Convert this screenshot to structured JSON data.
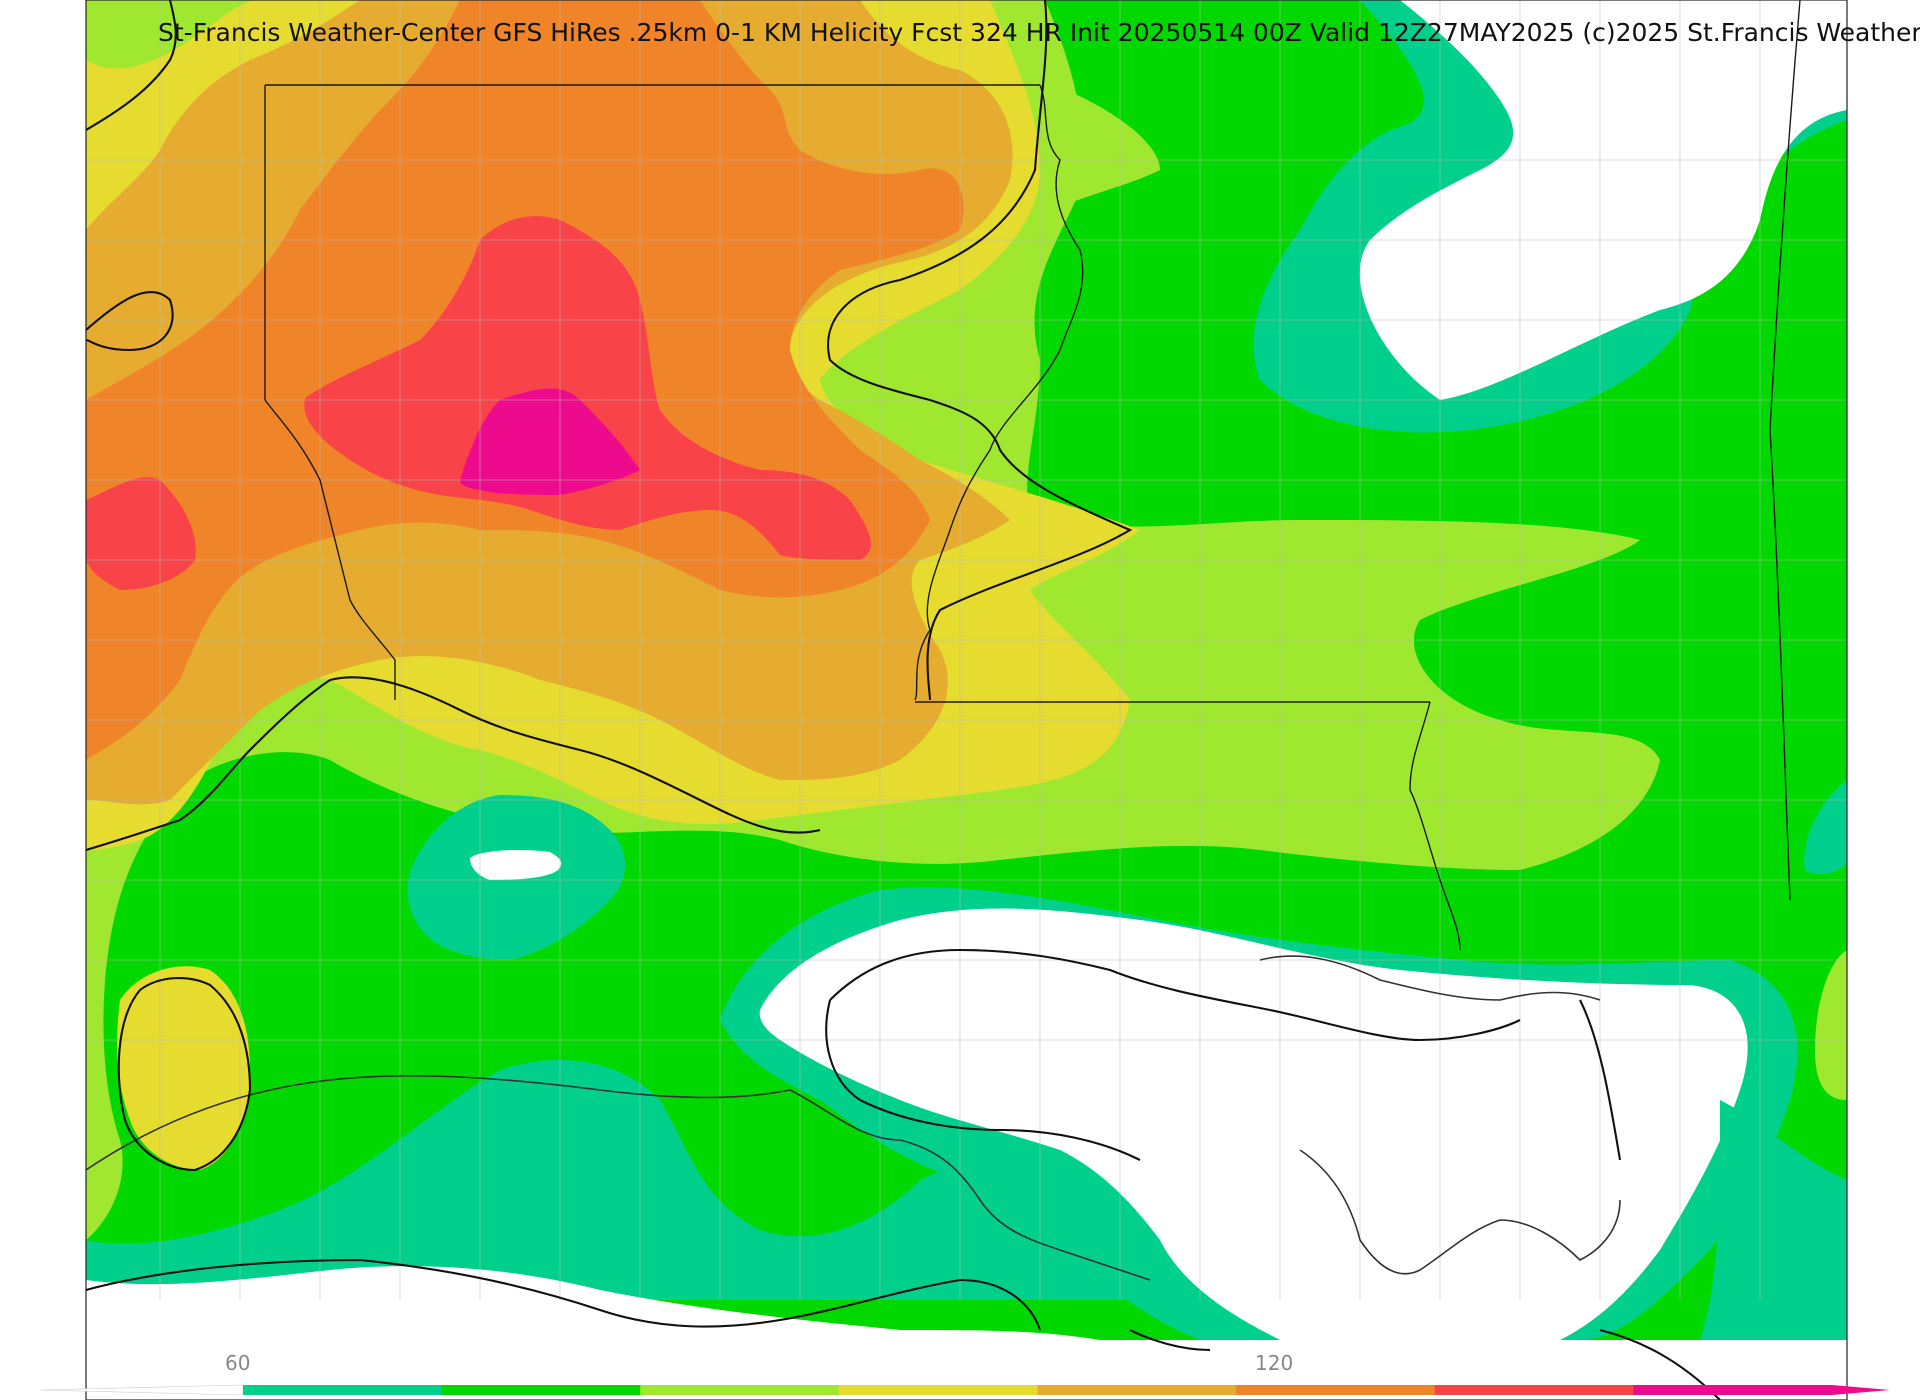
{
  "title": "St-Francis Weather-Center GFS HiRes .25km 0-1 KM Helicity Fcst 324 HR Init 20250514 00Z  Valid 12Z27MAY2025    (c)2025 St.Francis Weather",
  "colorbar": {
    "tick_labels": [
      "60",
      "120"
    ],
    "colors": [
      "#00d08c",
      "#00d800",
      "#a0e830",
      "#e6dc30",
      "#e6ac30",
      "#f08428",
      "#f84448",
      "#ee0a8c"
    ]
  },
  "palette": {
    "white": "#ffffff",
    "teal": "#00d08c",
    "green": "#00d800",
    "lightgreen": "#a0e830",
    "yellow": "#e6dc30",
    "gold": "#e6ac30",
    "orange": "#f08428",
    "red": "#f84448",
    "magenta": "#ee0a8c"
  }
}
